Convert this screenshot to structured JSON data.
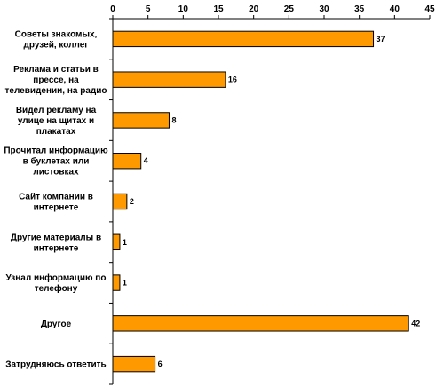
{
  "chart_data": {
    "type": "bar",
    "orientation": "horizontal",
    "title": "",
    "xlabel": "",
    "ylabel": "",
    "xlim": [
      0,
      45
    ],
    "xticks": [
      0,
      5,
      10,
      15,
      20,
      25,
      30,
      35,
      40,
      45
    ],
    "x_axis_position": "top",
    "grid": false,
    "legend": "none",
    "bar_color": "#FF9900",
    "bar_outline_color": "#000000",
    "categories": [
      [
        "Советы знакомых,",
        "друзей, коллег"
      ],
      [
        "Реклама и статьи в",
        "прессе, на",
        "телевидении, на радио"
      ],
      [
        "Видел рекламу на",
        "улице на щитах и",
        "плакатах"
      ],
      [
        "Прочитал информацию",
        "в буклетах или",
        "листовках"
      ],
      [
        "Сайт компании в",
        "интернете"
      ],
      [
        "Другие материалы в",
        "интернете"
      ],
      [
        "Узнал информацию по",
        "телефону"
      ],
      [
        "Другое"
      ],
      [
        "Затрудняюсь ответить"
      ]
    ],
    "values": [
      37,
      16,
      8,
      4,
      2,
      1,
      1,
      42,
      6
    ],
    "data_labels": [
      "37",
      "16",
      "8",
      "4",
      "2",
      "1",
      "1",
      "42",
      "6"
    ]
  }
}
